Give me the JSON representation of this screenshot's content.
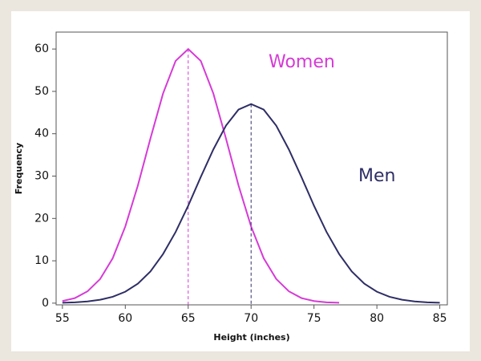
{
  "chart_data": {
    "type": "line",
    "x_label": "Height (inches)",
    "y_label": "Frequency",
    "x": [
      55,
      56,
      57,
      58,
      59,
      60,
      61,
      62,
      63,
      64,
      65,
      66,
      67,
      68,
      69,
      70,
      71,
      72,
      73,
      74,
      75,
      76,
      77,
      78,
      79,
      80,
      81,
      82,
      83,
      84,
      85
    ],
    "series": [
      {
        "name": "Women",
        "color": "#d63ad6",
        "values": [
          0.5,
          1.2,
          2.8,
          5.7,
          10.6,
          18.1,
          27.8,
          38.9,
          49.5,
          57.2,
          60,
          57.2,
          49.5,
          38.9,
          27.8,
          18.1,
          10.6,
          5.7,
          2.8,
          1.2,
          0.5,
          0.2,
          0.1,
          null,
          null,
          null,
          null,
          null,
          null,
          null,
          null
        ]
      },
      {
        "name": "Men",
        "color": "#2e2e66",
        "values": [
          0.1,
          0.2,
          0.4,
          0.8,
          1.5,
          2.7,
          4.6,
          7.5,
          11.6,
          16.8,
          23,
          29.8,
          36.3,
          41.9,
          45.7,
          47,
          45.7,
          41.9,
          36.3,
          29.8,
          23,
          16.8,
          11.6,
          7.5,
          4.6,
          2.7,
          1.5,
          0.8,
          0.4,
          0.2,
          0.1
        ]
      }
    ],
    "xlim": [
      54.5,
      85.6
    ],
    "ylim": [
      -0.4,
      64
    ],
    "xticks": [
      55,
      60,
      65,
      70,
      75,
      80,
      85
    ],
    "yticks": [
      0,
      10,
      20,
      30,
      40,
      50,
      60
    ],
    "grid": false,
    "peak_lines": true
  }
}
